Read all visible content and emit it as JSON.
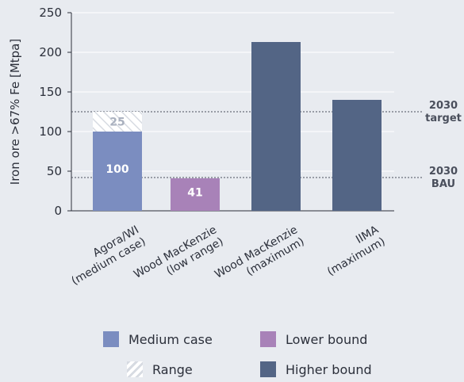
{
  "chart_data": {
    "type": "bar",
    "ylabel": "Iron ore >67% Fe [Mtpa]",
    "ylim": [
      0,
      250
    ],
    "yticks": [
      0,
      50,
      100,
      150,
      200,
      250
    ],
    "grid": true,
    "categories": [
      [
        "Agora/WI",
        "(medium case)"
      ],
      [
        "Wood MacKenzie",
        "(low range)"
      ],
      [
        "Wood MacKenzie",
        "(maximum)"
      ],
      [
        "IIMA",
        "(maximum)"
      ]
    ],
    "bars": [
      {
        "value": 100,
        "range": 25,
        "series": "Medium case",
        "label": "100",
        "range_label": "25"
      },
      {
        "value": 41,
        "series": "Lower bound",
        "label": "41"
      },
      {
        "value": 213,
        "series": "Higher bound"
      },
      {
        "value": 140,
        "series": "Higher bound"
      }
    ],
    "reference_lines": [
      {
        "value": 125,
        "label": [
          "2030",
          "target"
        ]
      },
      {
        "value": 42,
        "label": [
          "2030",
          "BAU"
        ]
      }
    ],
    "legend": [
      {
        "name": "Medium case",
        "color": "#7b8dc0",
        "style": "solid"
      },
      {
        "name": "Lower bound",
        "color": "#a882b8",
        "style": "solid"
      },
      {
        "name": "Range",
        "color": "#ffffff",
        "style": "hatch"
      },
      {
        "name": "Higher bound",
        "color": "#536585",
        "style": "solid"
      }
    ],
    "legend_position": "bottom"
  }
}
